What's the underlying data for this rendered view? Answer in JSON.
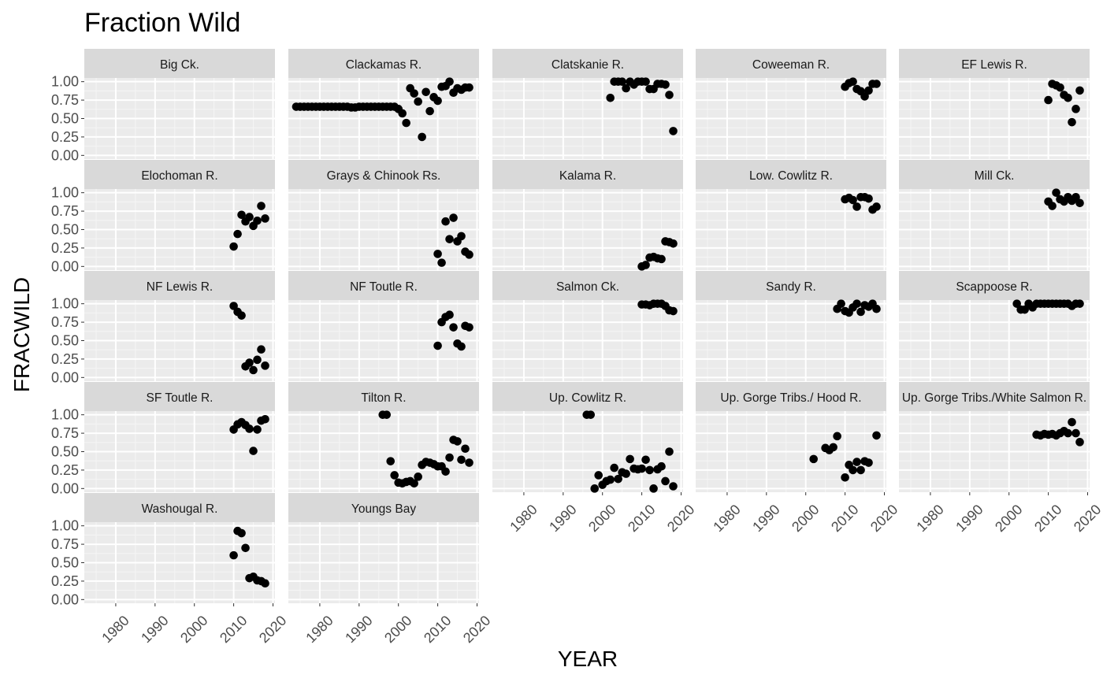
{
  "chart_data": {
    "type": "scatter",
    "title": "Fraction Wild",
    "xlabel": "YEAR",
    "ylabel": "FRACWILD",
    "x_ticks": [
      1980,
      1990,
      2000,
      2010,
      2020
    ],
    "y_ticks": [
      "0.00",
      "0.25",
      "0.50",
      "0.75",
      "1.00"
    ],
    "xlim": [
      1972,
      2020.5
    ],
    "ylim": [
      -0.05,
      1.05
    ],
    "grid": true,
    "panels": [
      {
        "name": "Big Ck.",
        "x": [],
        "y": []
      },
      {
        "name": "Clackamas R.",
        "x": [
          1974,
          1975,
          1976,
          1977,
          1978,
          1979,
          1980,
          1981,
          1982,
          1983,
          1984,
          1985,
          1986,
          1987,
          1988,
          1989,
          1990,
          1991,
          1992,
          1993,
          1994,
          1995,
          1996,
          1997,
          1998,
          1999,
          2000,
          2001,
          2002,
          2003,
          2004,
          2005,
          2006,
          2007,
          2008,
          2009,
          2010,
          2011,
          2012,
          2013,
          2014,
          2015,
          2016,
          2017,
          2018
        ],
        "y": [
          0.66,
          0.66,
          0.66,
          0.66,
          0.66,
          0.66,
          0.66,
          0.66,
          0.66,
          0.66,
          0.66,
          0.66,
          0.66,
          0.66,
          0.65,
          0.65,
          0.66,
          0.66,
          0.66,
          0.66,
          0.66,
          0.66,
          0.66,
          0.66,
          0.66,
          0.66,
          0.63,
          0.57,
          0.44,
          0.91,
          0.84,
          0.73,
          0.25,
          0.86,
          0.6,
          0.79,
          0.74,
          0.93,
          0.94,
          1.0,
          0.85,
          0.91,
          0.89,
          0.92,
          0.92
        ]
      },
      {
        "name": "Clatskanie R.",
        "x": [
          2002,
          2003,
          2004,
          2005,
          2006,
          2007,
          2008,
          2009,
          2010,
          2011,
          2012,
          2013,
          2014,
          2015,
          2016,
          2017,
          2018
        ],
        "y": [
          0.78,
          1.0,
          1.0,
          1.0,
          0.91,
          1.0,
          0.96,
          1.0,
          1.0,
          1.0,
          0.9,
          0.9,
          0.97,
          0.97,
          0.96,
          0.82,
          0.33
        ]
      },
      {
        "name": "Coweeman R.",
        "x": [
          2010,
          2011,
          2012,
          2013,
          2014,
          2015,
          2016,
          2017,
          2018
        ],
        "y": [
          0.93,
          0.98,
          1.0,
          0.9,
          0.87,
          0.8,
          0.88,
          0.97,
          0.97
        ]
      },
      {
        "name": "EF Lewis R.",
        "x": [
          2010,
          2011,
          2012,
          2013,
          2014,
          2015,
          2016,
          2017,
          2018
        ],
        "y": [
          0.75,
          0.97,
          0.95,
          0.92,
          0.82,
          0.78,
          0.45,
          0.63,
          0.88
        ]
      },
      {
        "name": "Elochoman R.",
        "x": [
          2010,
          2011,
          2012,
          2013,
          2014,
          2015,
          2016,
          2017,
          2018
        ],
        "y": [
          0.27,
          0.44,
          0.7,
          0.61,
          0.67,
          0.55,
          0.62,
          0.82,
          0.65
        ]
      },
      {
        "name": "Grays & Chinook Rs.",
        "x": [
          2010,
          2011,
          2012,
          2013,
          2014,
          2015,
          2016,
          2017,
          2018
        ],
        "y": [
          0.17,
          0.05,
          0.61,
          0.37,
          0.66,
          0.34,
          0.41,
          0.2,
          0.16
        ]
      },
      {
        "name": "Kalama R.",
        "x": [
          2010,
          2011,
          2012,
          2013,
          2014,
          2015,
          2016,
          2017,
          2018
        ],
        "y": [
          0.0,
          0.02,
          0.12,
          0.13,
          0.11,
          0.1,
          0.34,
          0.33,
          0.31
        ]
      },
      {
        "name": "Low. Cowlitz R.",
        "x": [
          2010,
          2011,
          2012,
          2013,
          2014,
          2015,
          2016,
          2017,
          2018
        ],
        "y": [
          0.91,
          0.93,
          0.9,
          0.81,
          0.94,
          0.94,
          0.92,
          0.77,
          0.81
        ]
      },
      {
        "name": "Mill Ck.",
        "x": [
          2010,
          2011,
          2012,
          2013,
          2014,
          2015,
          2016,
          2017,
          2018
        ],
        "y": [
          0.88,
          0.82,
          1.0,
          0.91,
          0.88,
          0.94,
          0.89,
          0.94,
          0.86
        ]
      },
      {
        "name": "NF Lewis R.",
        "x": [
          2010,
          2011,
          2012,
          2013,
          2014,
          2015,
          2016,
          2017,
          2018
        ],
        "y": [
          0.97,
          0.89,
          0.84,
          0.15,
          0.2,
          0.1,
          0.24,
          0.38,
          0.16
        ]
      },
      {
        "name": "NF Toutle R.",
        "x": [
          2010,
          2011,
          2012,
          2013,
          2014,
          2015,
          2016,
          2017,
          2018
        ],
        "y": [
          0.43,
          0.75,
          0.82,
          0.85,
          0.68,
          0.46,
          0.42,
          0.7,
          0.68
        ]
      },
      {
        "name": "Salmon Ck.",
        "x": [
          2010,
          2011,
          2012,
          2013,
          2014,
          2015,
          2016,
          2017,
          2018
        ],
        "y": [
          0.99,
          0.99,
          0.98,
          1.0,
          1.0,
          1.0,
          0.97,
          0.91,
          0.9
        ]
      },
      {
        "name": "Sandy R.",
        "x": [
          2008,
          2009,
          2010,
          2011,
          2012,
          2013,
          2014,
          2015,
          2016,
          2017,
          2018
        ],
        "y": [
          0.93,
          1.0,
          0.9,
          0.88,
          0.95,
          1.0,
          0.89,
          0.98,
          0.96,
          1.0,
          0.93
        ]
      },
      {
        "name": "Scappoose R.",
        "x": [
          2002,
          2003,
          2004,
          2005,
          2006,
          2007,
          2008,
          2009,
          2010,
          2011,
          2012,
          2013,
          2014,
          2015,
          2016,
          2017,
          2018
        ],
        "y": [
          1.0,
          0.92,
          0.92,
          1.0,
          0.95,
          1.0,
          1.0,
          1.0,
          1.0,
          1.0,
          1.0,
          1.0,
          1.0,
          1.0,
          0.97,
          1.0,
          1.0
        ]
      },
      {
        "name": "SF Toutle R.",
        "x": [
          2010,
          2011,
          2012,
          2013,
          2014,
          2015,
          2016,
          2017,
          2018
        ],
        "y": [
          0.8,
          0.87,
          0.9,
          0.86,
          0.81,
          0.51,
          0.8,
          0.92,
          0.94
        ]
      },
      {
        "name": "Tilton R.",
        "x": [
          1996,
          1997,
          1998,
          1999,
          2000,
          2001,
          2002,
          2003,
          2004,
          2005,
          2006,
          2007,
          2008,
          2009,
          2010,
          2011,
          2012,
          2013,
          2014,
          2015,
          2016,
          2017,
          2018
        ],
        "y": [
          1.0,
          1.0,
          0.37,
          0.18,
          0.08,
          0.07,
          0.09,
          0.1,
          0.07,
          0.16,
          0.32,
          0.36,
          0.35,
          0.33,
          0.3,
          0.3,
          0.23,
          0.42,
          0.66,
          0.64,
          0.39,
          0.54,
          0.35
        ]
      },
      {
        "name": "Up. Cowlitz R.",
        "x": [
          1996,
          1997,
          1998,
          1999,
          2000,
          2001,
          2002,
          2003,
          2004,
          2005,
          2006,
          2007,
          2008,
          2009,
          2010,
          2011,
          2012,
          2013,
          2014,
          2015,
          2016,
          2017,
          2018
        ],
        "y": [
          1.0,
          1.0,
          0.0,
          0.18,
          0.05,
          0.1,
          0.12,
          0.28,
          0.13,
          0.22,
          0.2,
          0.4,
          0.27,
          0.26,
          0.27,
          0.39,
          0.25,
          0.0,
          0.26,
          0.3,
          0.1,
          0.5,
          0.03
        ]
      },
      {
        "name": "Up. Gorge Tribs./ Hood R.",
        "x": [
          2002,
          2005,
          2006,
          2007,
          2008,
          2010,
          2011,
          2012,
          2013,
          2014,
          2015,
          2016,
          2018
        ],
        "y": [
          0.4,
          0.55,
          0.52,
          0.56,
          0.71,
          0.15,
          0.32,
          0.25,
          0.36,
          0.25,
          0.37,
          0.35,
          0.72
        ]
      },
      {
        "name": "Up. Gorge Tribs./White Salmon R.",
        "x": [
          2007,
          2008,
          2009,
          2010,
          2011,
          2012,
          2013,
          2014,
          2015,
          2016,
          2017,
          2018
        ],
        "y": [
          0.73,
          0.72,
          0.74,
          0.73,
          0.74,
          0.72,
          0.75,
          0.78,
          0.75,
          0.9,
          0.75,
          0.63
        ]
      },
      {
        "name": "Washougal R.",
        "x": [
          2010,
          2011,
          2012,
          2013,
          2014,
          2015,
          2016,
          2017,
          2018
        ],
        "y": [
          0.6,
          0.93,
          0.9,
          0.7,
          0.29,
          0.31,
          0.26,
          0.25,
          0.22
        ]
      },
      {
        "name": "Youngs Bay",
        "x": [],
        "y": []
      }
    ]
  }
}
